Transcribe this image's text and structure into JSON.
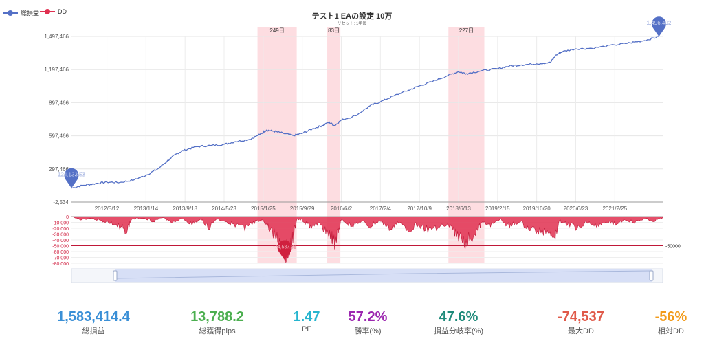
{
  "legend": [
    {
      "label": "総損益",
      "color": "#5470c6"
    },
    {
      "label": "DD",
      "color": "#e03050"
    }
  ],
  "title": "テスト1 EAの設定 10万",
  "subtitle": "リセット: 1年毎",
  "chart_data": [
    {
      "type": "line",
      "title": "テスト1 EAの設定 10万",
      "series": [
        {
          "name": "総損益",
          "color": "#5470c6"
        }
      ],
      "y_ticks": [
        "1,497,466",
        "1,197,466",
        "897,466",
        "597,466",
        "297,466",
        "-2,534"
      ],
      "ylim": [
        -2534,
        1497466
      ],
      "x_ticks": [
        "2012/5/12",
        "2013/1/14",
        "2013/9/18",
        "2014/5/23",
        "2015/1/25",
        "2015/9/29",
        "2016/6/2",
        "2017/2/4",
        "2017/10/9",
        "2018/6/13",
        "2019/2/15",
        "2019/10/20",
        "2020/6/23",
        "2021/2/25"
      ],
      "xlim": [
        "2011/10/01",
        "2021/12/25"
      ],
      "grid": true,
      "points": [
        [
          "2011/10/01",
          124133
        ],
        [
          "2011/12/15",
          150000
        ],
        [
          "2012/03/01",
          165000
        ],
        [
          "2012/05/12",
          178000
        ],
        [
          "2012/08/01",
          175000
        ],
        [
          "2012/11/01",
          200000
        ],
        [
          "2013/01/14",
          240000
        ],
        [
          "2013/04/01",
          300000
        ],
        [
          "2013/06/15",
          390000
        ],
        [
          "2013/08/01",
          440000
        ],
        [
          "2013/09/18",
          470000
        ],
        [
          "2013/12/01",
          500000
        ],
        [
          "2014/03/01",
          510000
        ],
        [
          "2014/05/23",
          520000
        ],
        [
          "2014/08/01",
          545000
        ],
        [
          "2014/11/01",
          565000
        ],
        [
          "2015/01/05",
          610000
        ],
        [
          "2015/02/15",
          650000
        ],
        [
          "2015/04/01",
          640000
        ],
        [
          "2015/06/01",
          620000
        ],
        [
          "2015/08/01",
          600000
        ],
        [
          "2015/09/29",
          620000
        ],
        [
          "2015/12/01",
          660000
        ],
        [
          "2016/02/01",
          690000
        ],
        [
          "2016/03/15",
          720000
        ],
        [
          "2016/04/20",
          690000
        ],
        [
          "2016/06/02",
          740000
        ],
        [
          "2016/09/01",
          780000
        ],
        [
          "2016/12/01",
          870000
        ],
        [
          "2017/02/04",
          905000
        ],
        [
          "2017/05/01",
          960000
        ],
        [
          "2017/08/01",
          1010000
        ],
        [
          "2017/10/09",
          1050000
        ],
        [
          "2018/01/01",
          1090000
        ],
        [
          "2018/04/01",
          1140000
        ],
        [
          "2018/06/13",
          1178000
        ],
        [
          "2018/08/01",
          1160000
        ],
        [
          "2018/11/01",
          1185000
        ],
        [
          "2019/02/15",
          1205000
        ],
        [
          "2019/05/01",
          1230000
        ],
        [
          "2019/07/15",
          1240000
        ],
        [
          "2019/10/20",
          1250000
        ],
        [
          "2020/01/15",
          1262000
        ],
        [
          "2020/02/20",
          1330000
        ],
        [
          "2020/04/01",
          1360000
        ],
        [
          "2020/06/23",
          1385000
        ],
        [
          "2020/10/01",
          1390000
        ],
        [
          "2021/02/25",
          1420000
        ],
        [
          "2021/06/01",
          1440000
        ],
        [
          "2021/09/01",
          1460000
        ],
        [
          "2021/12/01",
          1496402
        ]
      ],
      "markers": [
        {
          "date": "2011/10/01",
          "value": 124133,
          "label": "124,133.53"
        },
        {
          "date": "2021/12/01",
          "value": 1496402,
          "label": "1,496,402"
        }
      ],
      "highlight_ranges": [
        {
          "start": "2014/12/20",
          "end": "2015/08/25",
          "label": "249日"
        },
        {
          "start": "2016/03/05",
          "end": "2016/05/27",
          "label": "83日"
        },
        {
          "start": "2018/04/10",
          "end": "2018/11/23",
          "label": "227日"
        }
      ]
    },
    {
      "type": "area",
      "series": [
        {
          "name": "DD",
          "color": "#e03050"
        }
      ],
      "y_ticks": [
        "0",
        "-10,000",
        "-20,000",
        "-30,000",
        "-40,000",
        "-50,000",
        "-60,000",
        "-70,000",
        "-80,000"
      ],
      "ylim": [
        -80000,
        0
      ],
      "reference_line": {
        "value": -50000,
        "label": "-50000"
      },
      "points": [
        [
          "2011/10/01",
          0
        ],
        [
          "2011/12/01",
          -6000
        ],
        [
          "2012/02/01",
          -3000
        ],
        [
          "2012/04/01",
          -8000
        ],
        [
          "2012/06/01",
          -12000
        ],
        [
          "2012/08/01",
          -22000
        ],
        [
          "2012/09/15",
          -28000
        ],
        [
          "2012/10/15",
          -5000
        ],
        [
          "2013/01/01",
          -3000
        ],
        [
          "2013/03/01",
          -9000
        ],
        [
          "2013/05/01",
          -2000
        ],
        [
          "2013/07/01",
          -11000
        ],
        [
          "2013/09/01",
          -4000
        ],
        [
          "2013/11/01",
          -15000
        ],
        [
          "2014/01/01",
          -6000
        ],
        [
          "2014/02/15",
          -22000
        ],
        [
          "2014/04/01",
          -5000
        ],
        [
          "2014/06/01",
          -9000
        ],
        [
          "2014/08/01",
          -18000
        ],
        [
          "2014/10/01",
          -25000
        ],
        [
          "2014/12/01",
          -12000
        ],
        [
          "2015/01/25",
          -8000
        ],
        [
          "2015/03/01",
          -22000
        ],
        [
          "2015/04/15",
          -38000
        ],
        [
          "2015/05/15",
          -55000
        ],
        [
          "2015/06/10",
          -74537
        ],
        [
          "2015/07/05",
          -62000
        ],
        [
          "2015/08/01",
          -45000
        ],
        [
          "2015/08/25",
          -5000
        ],
        [
          "2015/10/01",
          -8000
        ],
        [
          "2015/11/15",
          -20000
        ],
        [
          "2016/01/01",
          -15000
        ],
        [
          "2016/02/15",
          -25000
        ],
        [
          "2016/03/25",
          -38000
        ],
        [
          "2016/04/20",
          -56000
        ],
        [
          "2016/05/15",
          -28000
        ],
        [
          "2016/06/02",
          -5000
        ],
        [
          "2016/08/01",
          -18000
        ],
        [
          "2016/10/01",
          -10000
        ],
        [
          "2016/12/01",
          -20000
        ],
        [
          "2017/02/01",
          -8000
        ],
        [
          "2017/04/01",
          -24000
        ],
        [
          "2017/06/01",
          -12000
        ],
        [
          "2017/08/01",
          -26000
        ],
        [
          "2017/10/01",
          -15000
        ],
        [
          "2017/12/01",
          -28000
        ],
        [
          "2018/02/01",
          -20000
        ],
        [
          "2018/04/15",
          -18000
        ],
        [
          "2018/06/01",
          -35000
        ],
        [
          "2018/07/20",
          -52000
        ],
        [
          "2018/09/01",
          -40000
        ],
        [
          "2018/10/15",
          -25000
        ],
        [
          "2018/11/20",
          -10000
        ],
        [
          "2019/01/01",
          -18000
        ],
        [
          "2019/03/01",
          -5000
        ],
        [
          "2019/05/01",
          -20000
        ],
        [
          "2019/07/01",
          -10000
        ],
        [
          "2019/09/01",
          -24000
        ],
        [
          "2019/11/01",
          -30000
        ],
        [
          "2020/01/01",
          -28000
        ],
        [
          "2020/02/15",
          -38000
        ],
        [
          "2020/03/10",
          -8000
        ],
        [
          "2020/05/01",
          -15000
        ],
        [
          "2020/07/01",
          -22000
        ],
        [
          "2020/09/01",
          -10000
        ],
        [
          "2020/11/01",
          -18000
        ],
        [
          "2021/01/01",
          -9000
        ],
        [
          "2021/03/01",
          -15000
        ],
        [
          "2021/05/01",
          -6000
        ],
        [
          "2021/07/01",
          -12000
        ],
        [
          "2021/09/01",
          -4000
        ],
        [
          "2021/11/01",
          -9000
        ],
        [
          "2021/12/25",
          -2000
        ]
      ],
      "markers": [
        {
          "date": "2015/06/10",
          "value": -74537,
          "label": "-74,537.38"
        }
      ]
    }
  ],
  "stats": [
    {
      "value": "1,583,414.4",
      "label": "総損益",
      "color": "#3a8fd6"
    },
    {
      "value": "13,788.2",
      "label": "総獲得pips",
      "color": "#4caf50"
    },
    {
      "value": "1.47",
      "label": "PF",
      "color": "#26b5cf"
    },
    {
      "value": "57.2%",
      "label": "勝率(%)",
      "color": "#9c27b0"
    },
    {
      "value": "47.6%",
      "label": "損益分岐率(%)",
      "color": "#1e8a7a"
    },
    {
      "value": "-74,537",
      "label": "最大DD",
      "color": "#e05a4a"
    },
    {
      "value": "-56%",
      "label": "相対DD",
      "color": "#f29b1a"
    }
  ]
}
